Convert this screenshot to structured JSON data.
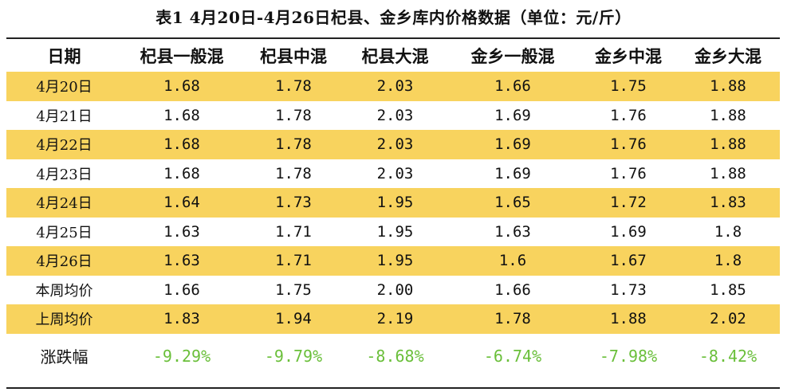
{
  "title": "表1  4月20日-4月26日杞县、金乡库内价格数据（单位：元/斤）",
  "colors": {
    "band": "#f8d35e",
    "change_text": "#6abf3a",
    "rule": "#222222"
  },
  "headers": [
    "日期",
    "杞县一般混",
    "杞县中混",
    "杞县大混",
    "金乡一般混",
    "金乡中混",
    "金乡大混"
  ],
  "rows": [
    {
      "label": "4月20日",
      "values": [
        "1.68",
        "1.78",
        "2.03",
        "1.66",
        "1.75",
        "1.88"
      ]
    },
    {
      "label": "4月21日",
      "values": [
        "1.68",
        "1.78",
        "2.03",
        "1.69",
        "1.76",
        "1.88"
      ]
    },
    {
      "label": "4月22日",
      "values": [
        "1.68",
        "1.78",
        "2.03",
        "1.69",
        "1.76",
        "1.88"
      ]
    },
    {
      "label": "4月23日",
      "values": [
        "1.68",
        "1.78",
        "2.03",
        "1.69",
        "1.76",
        "1.88"
      ]
    },
    {
      "label": "4月24日",
      "values": [
        "1.64",
        "1.73",
        "1.95",
        "1.65",
        "1.72",
        "1.83"
      ]
    },
    {
      "label": "4月25日",
      "values": [
        "1.63",
        "1.71",
        "1.95",
        "1.63",
        "1.69",
        "1.8"
      ]
    },
    {
      "label": "4月26日",
      "values": [
        "1.63",
        "1.71",
        "1.95",
        "1.6",
        "1.67",
        "1.8"
      ]
    },
    {
      "label": "本周均价",
      "values": [
        "1.66",
        "1.75",
        "2.00",
        "1.66",
        "1.73",
        "1.85"
      ]
    },
    {
      "label": "上周均价",
      "values": [
        "1.83",
        "1.94",
        "2.19",
        "1.78",
        "1.88",
        "2.02"
      ]
    }
  ],
  "change_row": {
    "label": "涨跌幅",
    "values": [
      "-9.29%",
      "-9.79%",
      "-8.68%",
      "-6.74%",
      "-7.98%",
      "-8.42%"
    ]
  }
}
